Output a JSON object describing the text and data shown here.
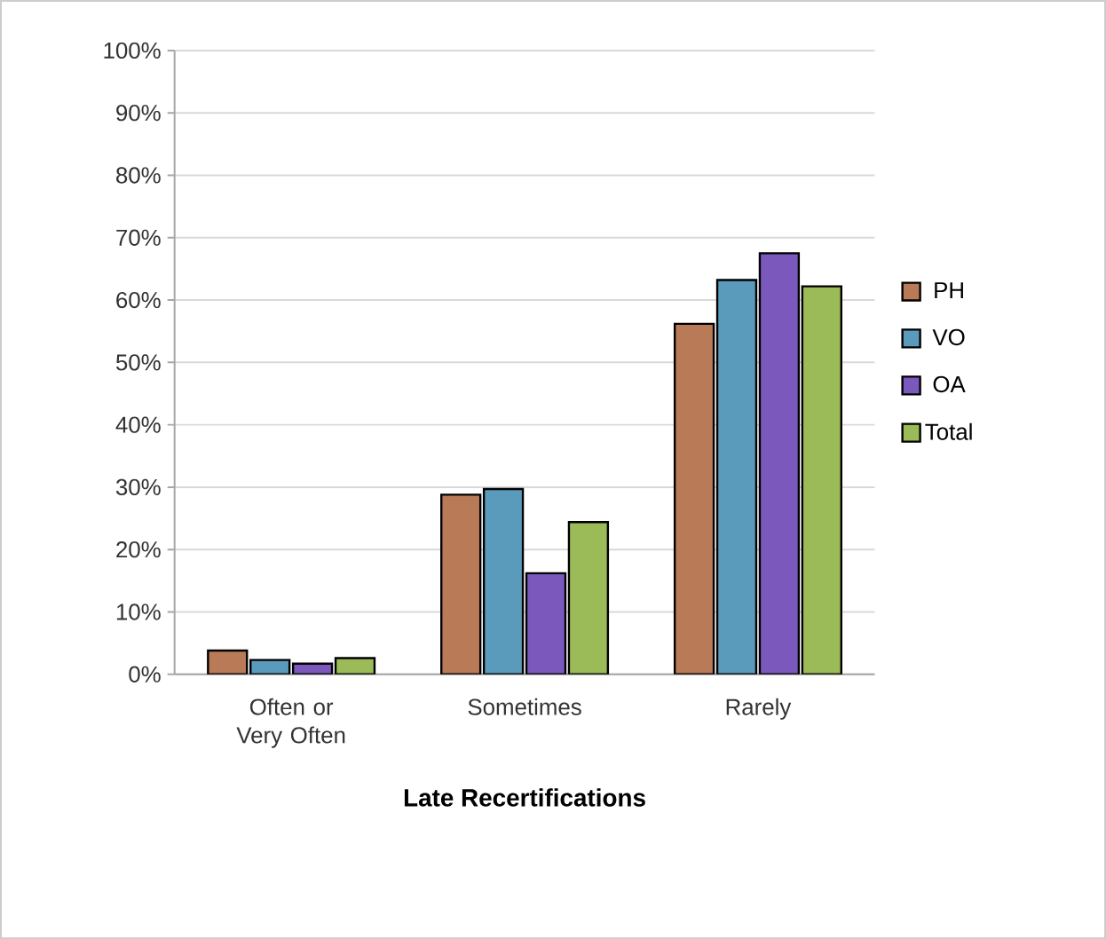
{
  "chart_data": {
    "type": "bar",
    "xlabel": "Late Recertifications",
    "categories": [
      "Often or Very Often",
      "Sometimes",
      "Rarely"
    ],
    "series": [
      {
        "name": "PH",
        "color": "#b97a57",
        "values": [
          3.8,
          28.8,
          56.2
        ]
      },
      {
        "name": "VO",
        "color": "#5a9bbb",
        "values": [
          2.3,
          29.7,
          63.2
        ]
      },
      {
        "name": "OA",
        "color": "#7b59bc",
        "values": [
          1.7,
          16.2,
          67.5
        ]
      },
      {
        "name": "Total",
        "color": "#9bbb59",
        "values": [
          2.6,
          24.4,
          62.2
        ]
      }
    ],
    "ylim": [
      0,
      100
    ],
    "yticks": [
      {
        "value": 0,
        "label": "0%"
      },
      {
        "value": 10,
        "label": "10%"
      },
      {
        "value": 20,
        "label": "20%"
      },
      {
        "value": 30,
        "label": "30%"
      },
      {
        "value": 40,
        "label": "40%"
      },
      {
        "value": 50,
        "label": "50%"
      },
      {
        "value": 60,
        "label": "60%"
      },
      {
        "value": 70,
        "label": "70%"
      },
      {
        "value": 80,
        "label": "80%"
      },
      {
        "value": 90,
        "label": "90%"
      },
      {
        "value": 100,
        "label": "100%"
      }
    ],
    "grid": "y",
    "legend": "right"
  }
}
